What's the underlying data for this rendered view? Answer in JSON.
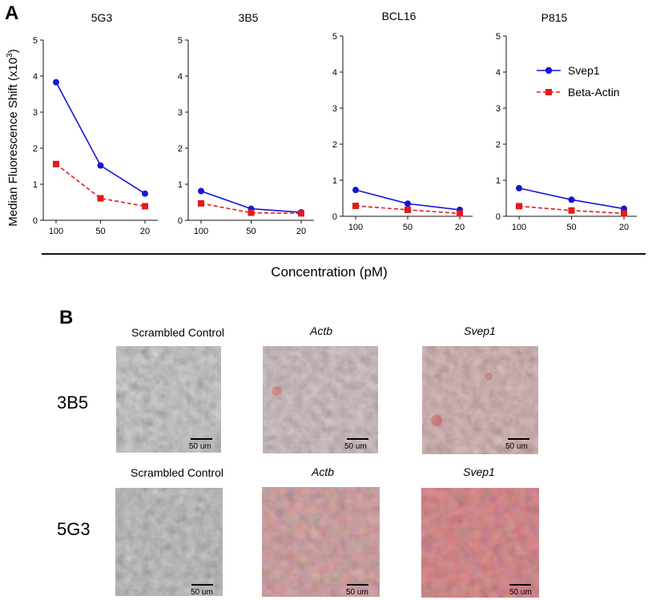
{
  "panel_a": {
    "letter": "A",
    "ylabel": "Median Fluorescence Shift (x10",
    "ylabel_exp": "3",
    "ylabel_close": ")",
    "xlabel": "Concentration (pM)",
    "legend": [
      "Svep1",
      "Beta-Actin"
    ]
  },
  "colors": {
    "svep1": "#1515d6",
    "actin": "#e21b1b",
    "axis": "#111111"
  },
  "chart_data": [
    {
      "type": "line",
      "title": "5G3",
      "categories": [
        "100",
        "50",
        "20"
      ],
      "ylim": [
        0,
        5
      ],
      "yticks": [
        "0",
        "1",
        "2",
        "3",
        "4",
        "5"
      ],
      "series": [
        {
          "name": "Svep1",
          "values": [
            3.83,
            1.52,
            0.74
          ]
        },
        {
          "name": "Beta-Actin",
          "values": [
            1.56,
            0.61,
            0.39
          ]
        }
      ]
    },
    {
      "type": "line",
      "title": "3B5",
      "categories": [
        "100",
        "50",
        "20"
      ],
      "ylim": [
        0,
        5
      ],
      "yticks": [
        "0",
        "1",
        "2",
        "3",
        "4",
        "5"
      ],
      "series": [
        {
          "name": "Svep1",
          "values": [
            0.81,
            0.32,
            0.22
          ]
        },
        {
          "name": "Beta-Actin",
          "values": [
            0.47,
            0.21,
            0.19
          ]
        }
      ]
    },
    {
      "type": "line",
      "title": "BCL16",
      "categories": [
        "100",
        "50",
        "20"
      ],
      "ylim": [
        0,
        5
      ],
      "yticks": [
        "0",
        "1",
        "2",
        "3",
        "4",
        "5"
      ],
      "series": [
        {
          "name": "Svep1",
          "values": [
            0.73,
            0.35,
            0.18
          ]
        },
        {
          "name": "Beta-Actin",
          "values": [
            0.29,
            0.18,
            0.08
          ]
        }
      ]
    },
    {
      "type": "line",
      "title": "P815",
      "categories": [
        "100",
        "50",
        "20"
      ],
      "ylim": [
        0,
        5
      ],
      "yticks": [
        "0",
        "1",
        "2",
        "3",
        "4",
        "5"
      ],
      "series": [
        {
          "name": "Svep1",
          "values": [
            0.78,
            0.46,
            0.21
          ]
        },
        {
          "name": "Beta-Actin",
          "values": [
            0.28,
            0.16,
            0.08
          ]
        }
      ]
    }
  ],
  "panel_b": {
    "letter": "B",
    "rows": [
      {
        "label": "3B5",
        "images": [
          {
            "title": "Scrambled Control",
            "italic": false,
            "scale": "50 um",
            "tint": "gray"
          },
          {
            "title": "Actb",
            "italic": true,
            "scale": "50 um",
            "tint": "light-red"
          },
          {
            "title": "Svep1",
            "italic": true,
            "scale": "50 um",
            "tint": "medium-red"
          }
        ]
      },
      {
        "label": "5G3",
        "images": [
          {
            "title": "Scrambled Control",
            "italic": false,
            "scale": "50 um",
            "tint": "gray"
          },
          {
            "title": "Actb",
            "italic": true,
            "scale": "50 um",
            "tint": "pink"
          },
          {
            "title": "Svep1",
            "italic": true,
            "scale": "50 um",
            "tint": "red"
          }
        ]
      }
    ]
  }
}
